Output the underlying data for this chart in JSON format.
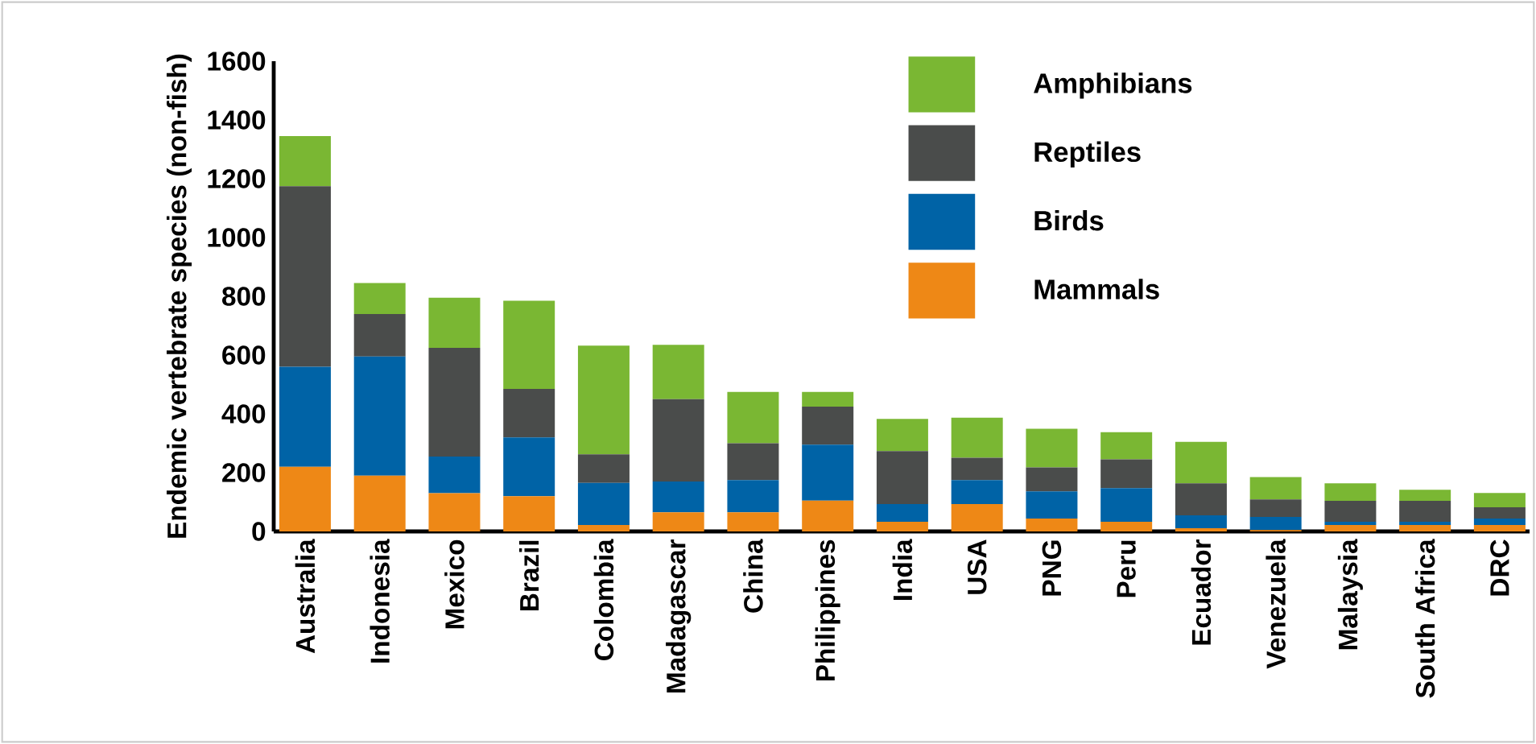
{
  "chart_data": {
    "type": "bar",
    "stacked": true,
    "ylabel": "Endemic vertebrate species (non-fish)",
    "categories": [
      "Australia",
      "Indonesia",
      "Mexico",
      "Brazil",
      "Colombia",
      "Madagascar",
      "China",
      "Philippines",
      "India",
      "USA",
      "PNG",
      "Peru",
      "Ecuador",
      "Venezuela",
      "Malaysia",
      "South Africa",
      "DRC"
    ],
    "series": [
      {
        "name": "Mammals",
        "color": "#ee8816",
        "values": [
          220,
          190,
          130,
          120,
          22,
          65,
          65,
          105,
          33,
          93,
          44,
          33,
          11,
          5,
          22,
          22,
          22
        ]
      },
      {
        "name": "Birds",
        "color": "#0063a6",
        "values": [
          340,
          405,
          125,
          200,
          143,
          105,
          110,
          190,
          60,
          82,
          92,
          114,
          44,
          44,
          11,
          11,
          22
        ]
      },
      {
        "name": "Reptiles",
        "color": "#4a4c4b",
        "values": [
          615,
          145,
          370,
          165,
          97,
          280,
          125,
          130,
          180,
          76,
          82,
          98,
          109,
          60,
          71,
          71,
          38
        ]
      },
      {
        "name": "Amphibians",
        "color": "#7ab733",
        "values": [
          170,
          105,
          170,
          300,
          370,
          185,
          175,
          50,
          110,
          136,
          131,
          93,
          141,
          76,
          60,
          38,
          49
        ]
      }
    ],
    "ylim": [
      0,
      1600
    ],
    "yticks": [
      0,
      200,
      400,
      600,
      800,
      1000,
      1200,
      1400,
      1600
    ],
    "legend": "top right"
  }
}
